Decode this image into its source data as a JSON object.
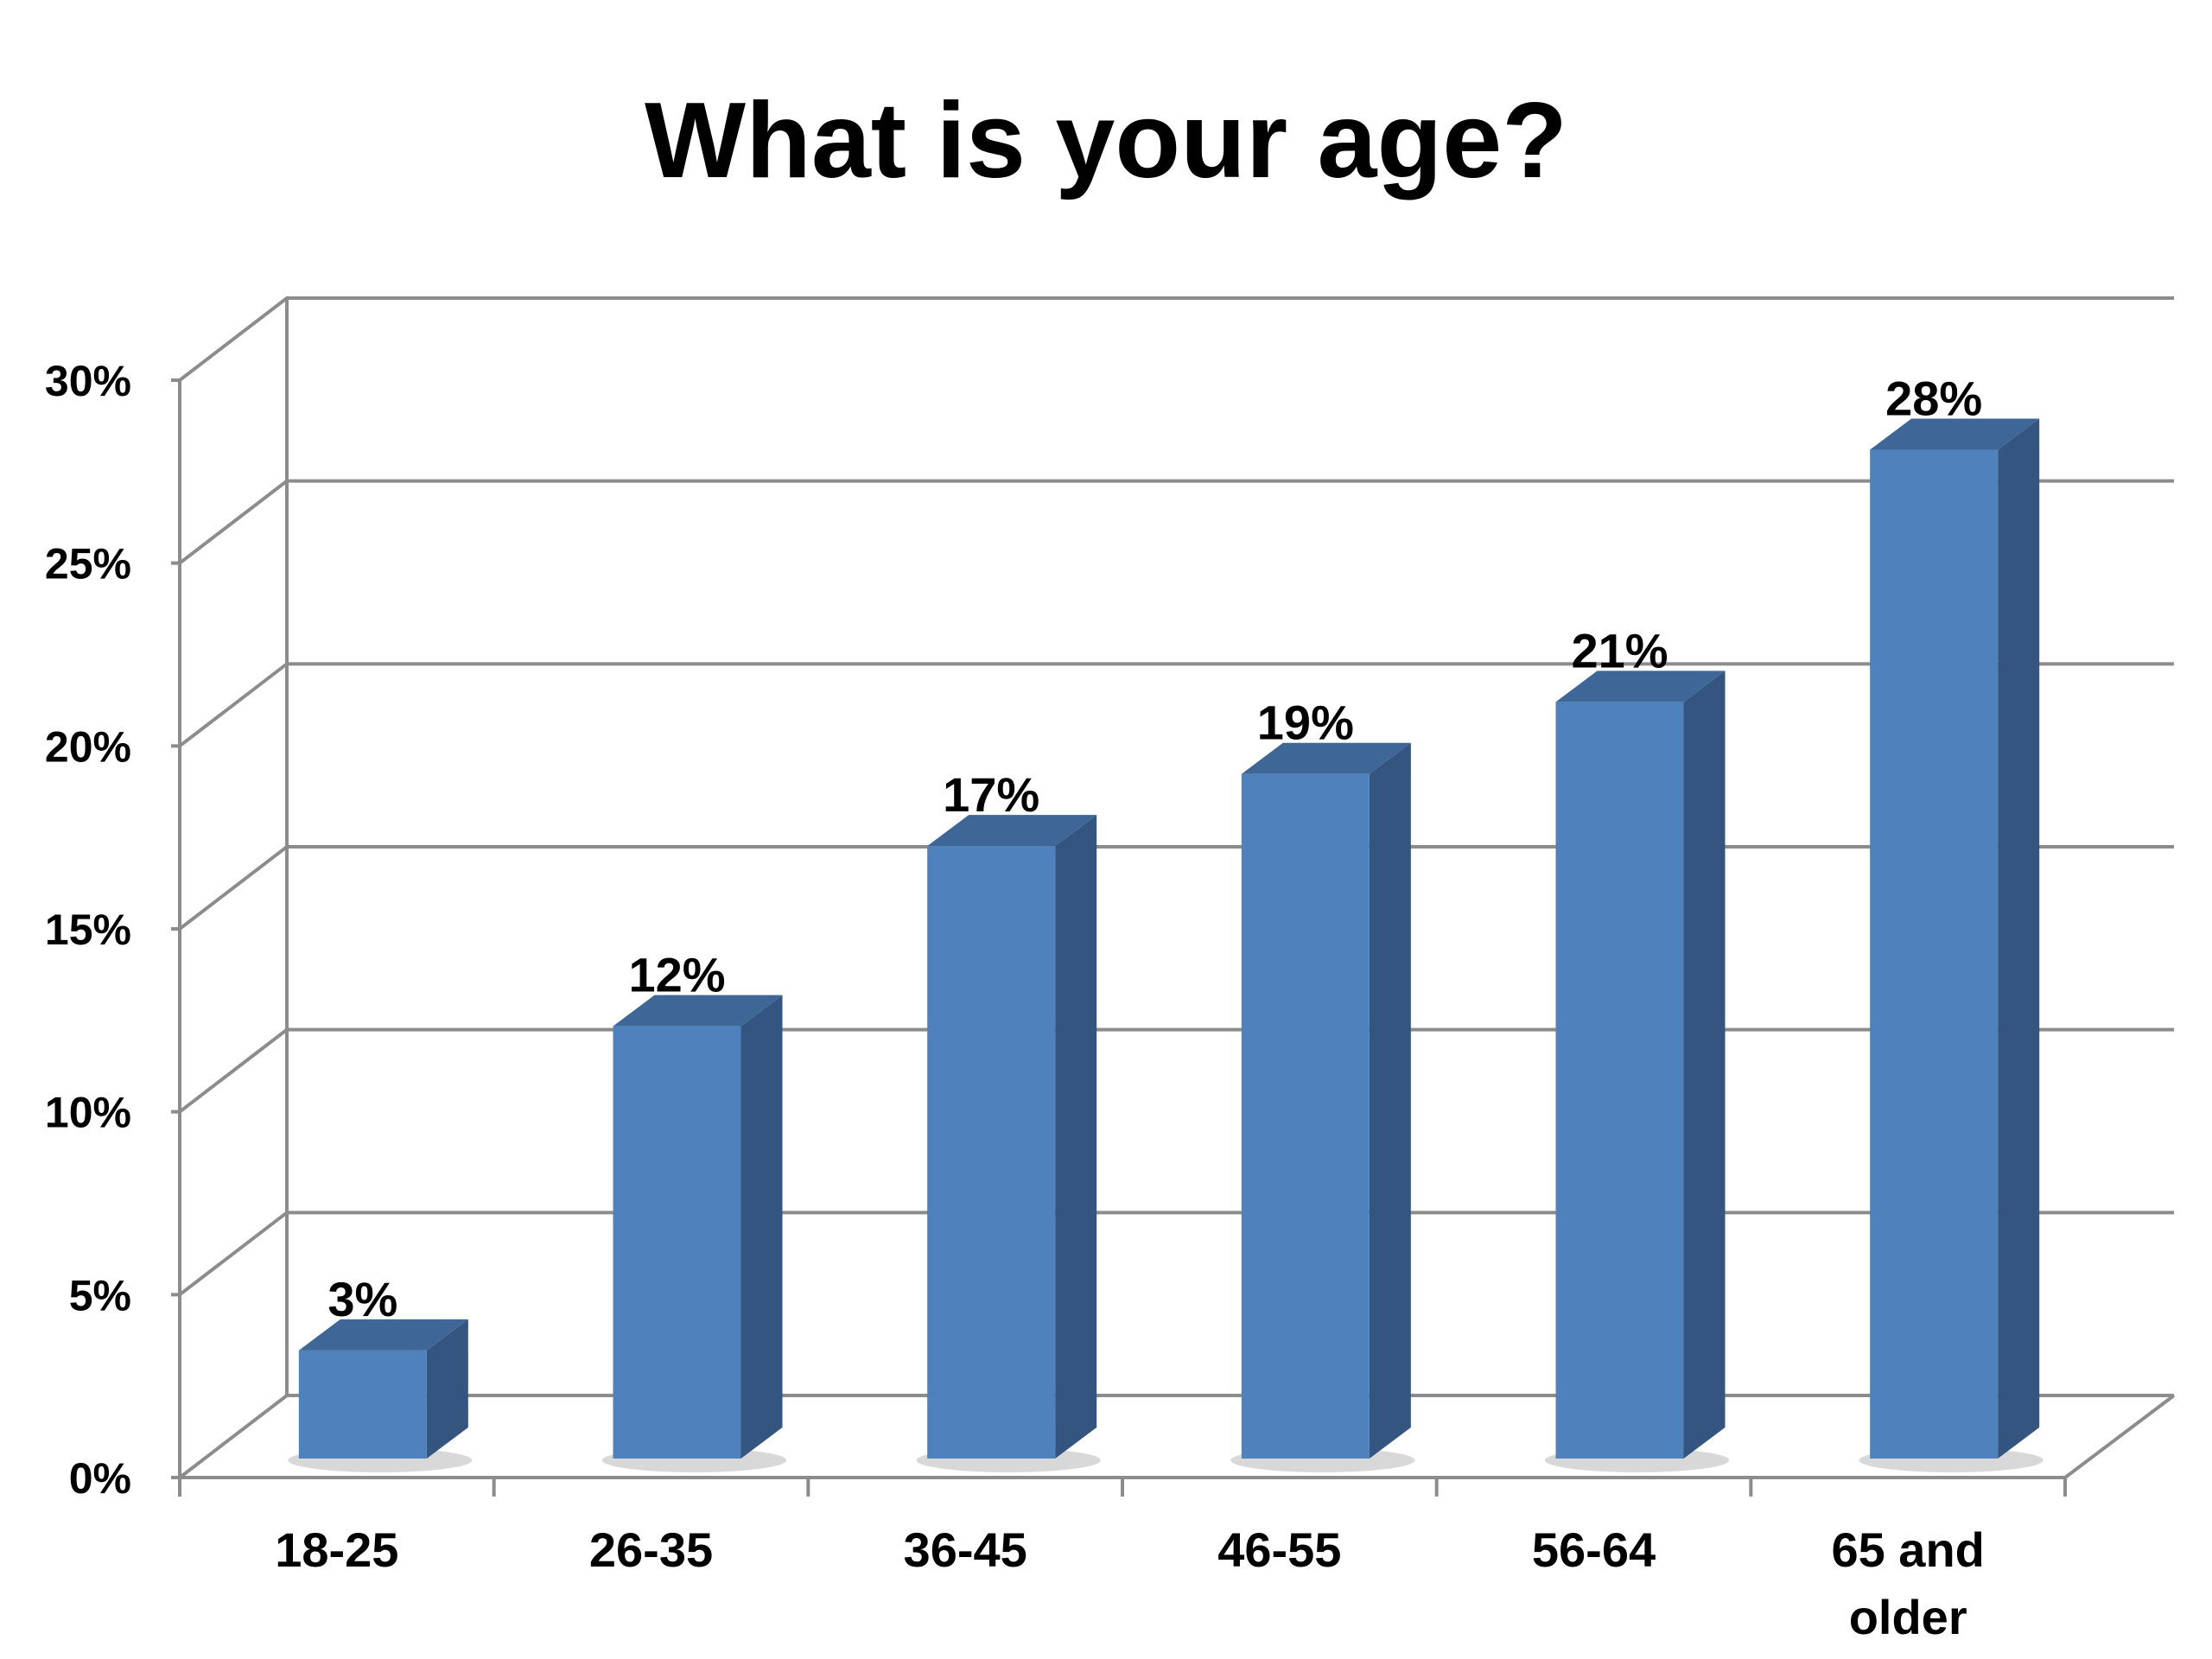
{
  "chart_data": {
    "type": "bar",
    "title": "What is your age?",
    "categories": [
      "18-25",
      "26-35",
      "36-45",
      "46-55",
      "56-64",
      "65 and older"
    ],
    "values": [
      3,
      12,
      17,
      19,
      21,
      28
    ],
    "data_labels": [
      "3%",
      "12%",
      "17%",
      "19%",
      "21%",
      "28%"
    ],
    "y_ticks": [
      "0%",
      "5%",
      "10%",
      "15%",
      "20%",
      "25%",
      "30%"
    ],
    "ylim": [
      0,
      30
    ],
    "y_step": 5,
    "xlabel": "",
    "ylabel": "",
    "grid": true,
    "legend": "none",
    "style": "3d-column",
    "colors": {
      "bar_front": "#4f81bd",
      "bar_side": "#34557f",
      "bar_top": "#3e6696",
      "grid": "#8c8c8c",
      "shadow": "#c8c8c8"
    }
  }
}
